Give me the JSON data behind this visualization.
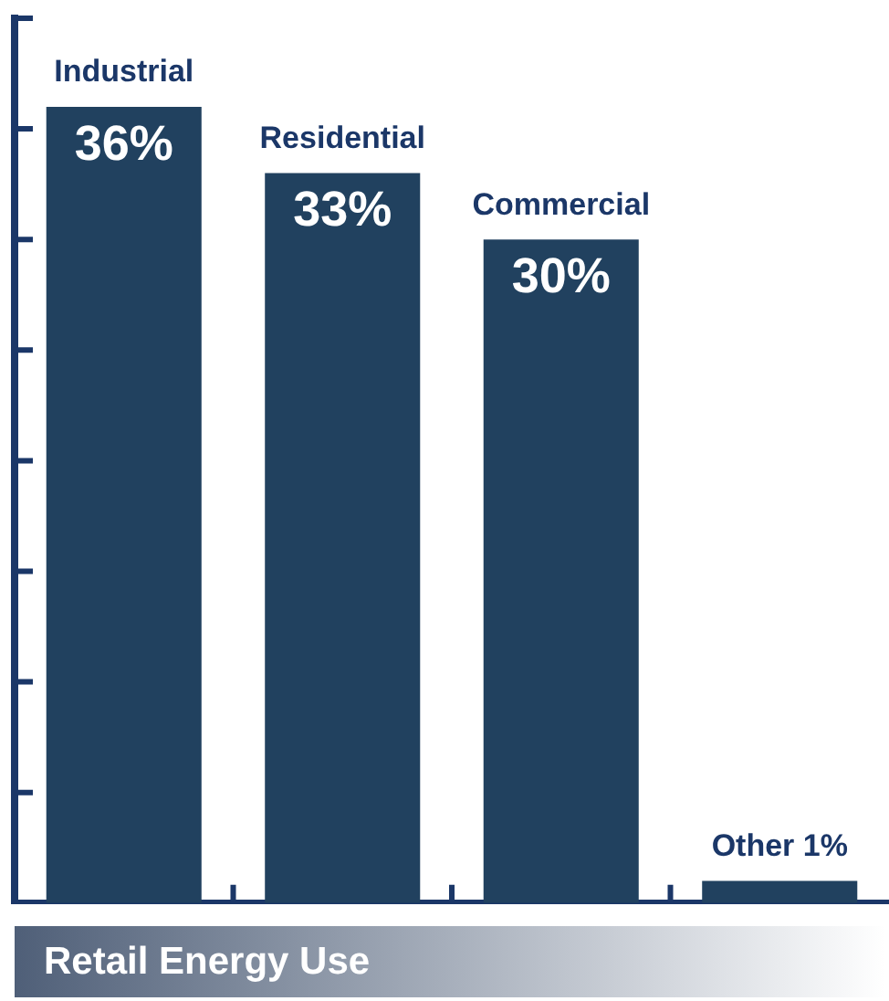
{
  "chart_data": {
    "type": "bar",
    "title": "Retail Energy Use",
    "categories": [
      "Industrial",
      "Residential",
      "Commercial",
      "Other"
    ],
    "values": [
      36,
      33,
      30,
      1
    ],
    "value_labels": [
      "36%",
      "33%",
      "30%",
      "1%"
    ],
    "color": "#21415f",
    "ylim": [
      0,
      40
    ],
    "yticks": [
      {
        "value": 0,
        "label": null
      },
      {
        "value": 5,
        "label": null
      },
      {
        "value": 10,
        "label": null
      },
      {
        "value": 15,
        "label": null
      },
      {
        "value": 20,
        "label": null
      },
      {
        "value": 25,
        "label": null
      },
      {
        "value": 30,
        "label": null
      },
      {
        "value": 35,
        "label": null
      },
      {
        "value": 40,
        "label": null
      }
    ],
    "grid": false,
    "legend": false,
    "tick_labels": false
  }
}
